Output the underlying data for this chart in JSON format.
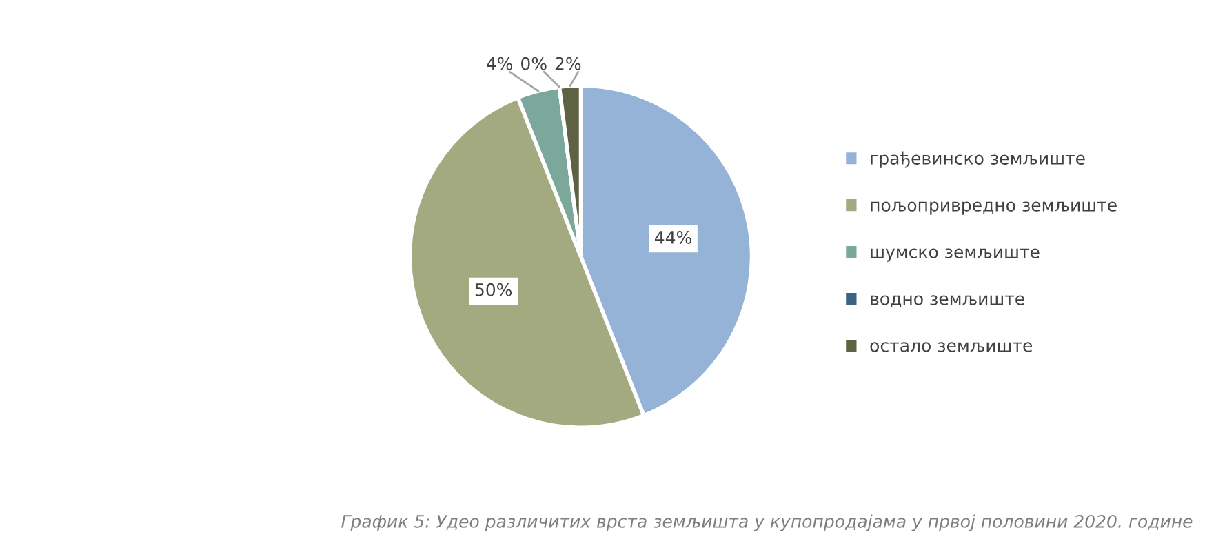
{
  "chart_data": {
    "type": "pie",
    "categories": [
      "грађевинско земљиште",
      "пољопривредно земљиште",
      "шумско земљиште",
      "водно земљиште",
      "остало земљиште"
    ],
    "values": [
      44,
      50,
      4,
      0,
      2
    ],
    "colors": [
      "#95b3d7",
      "#a4aa80",
      "#7ba89b",
      "#3a6384",
      "#5e6142"
    ],
    "value_labels": [
      "44%",
      "50%",
      "4%",
      "0%",
      "2%"
    ],
    "legend": "right",
    "annotations": [
      "График 5: Удео различитих врста земљишта у купопродајама у првој половини 2020. године"
    ]
  }
}
